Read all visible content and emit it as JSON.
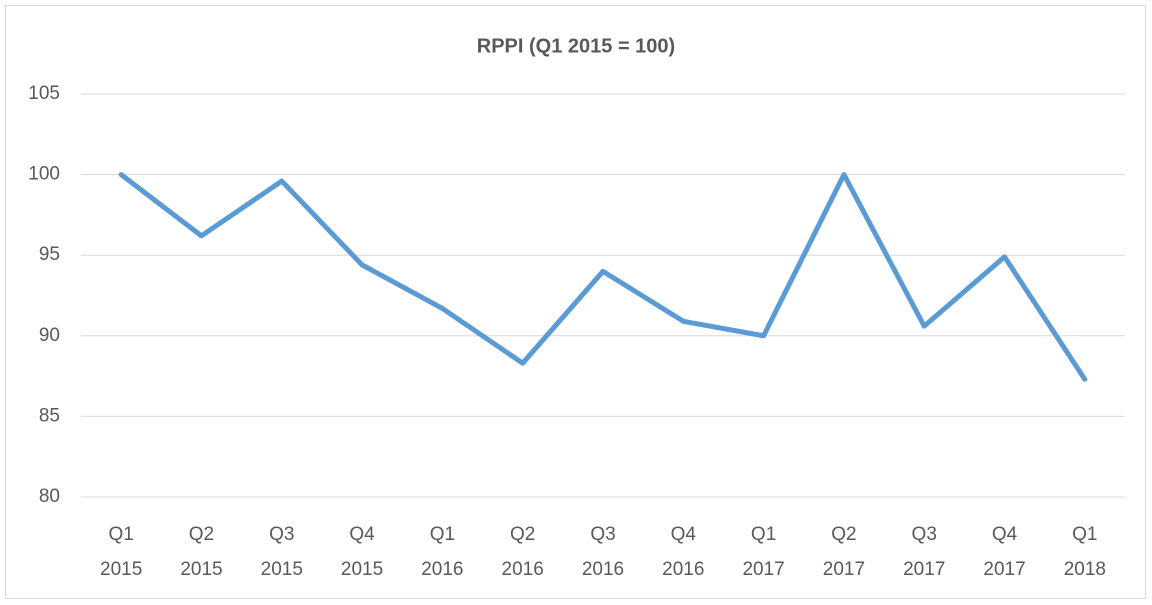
{
  "chart_data": {
    "type": "line",
    "title": "RPPI (Q1 2015 = 100)",
    "categories": [
      [
        "Q1",
        "2015"
      ],
      [
        "Q2",
        "2015"
      ],
      [
        "Q3",
        "2015"
      ],
      [
        "Q4",
        "2015"
      ],
      [
        "Q1",
        "2016"
      ],
      [
        "Q2",
        "2016"
      ],
      [
        "Q3",
        "2016"
      ],
      [
        "Q4",
        "2016"
      ],
      [
        "Q1",
        "2017"
      ],
      [
        "Q2",
        "2017"
      ],
      [
        "Q3",
        "2017"
      ],
      [
        "Q4",
        "2017"
      ],
      [
        "Q1",
        "2018"
      ]
    ],
    "series": [
      {
        "color": "#5b9bd5",
        "values": [
          100,
          96.2,
          99.6,
          94.4,
          91.7,
          88.3,
          94.0,
          90.9,
          90.0,
          100.0,
          90.6,
          94.9,
          87.3
        ]
      }
    ],
    "ylim": [
      80,
      105
    ],
    "yticks": [
      80,
      85,
      90,
      95,
      100,
      105
    ],
    "grid": true
  }
}
